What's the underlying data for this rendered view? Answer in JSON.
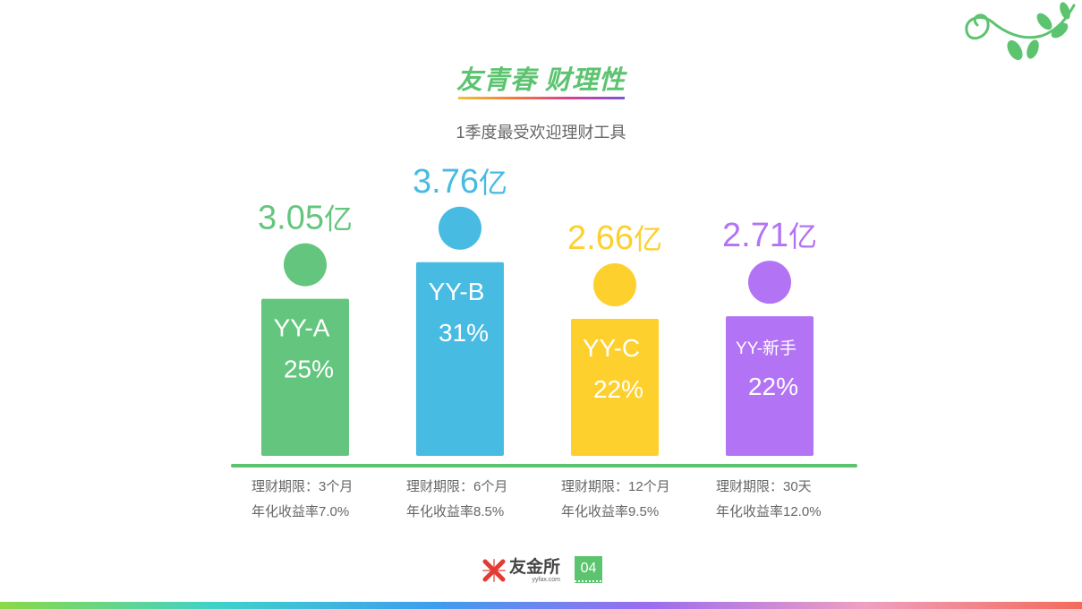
{
  "header": {
    "title": "友青春 财理性",
    "subtitle": "1季度最受欢迎理财工具"
  },
  "chart_data": {
    "type": "bar",
    "unit": "亿",
    "categories": [
      "YY-A",
      "YY-B",
      "YY-C",
      "YY-新手"
    ],
    "values": [
      3.05,
      3.76,
      2.66,
      2.71
    ],
    "share": [
      "25%",
      "31%",
      "22%",
      "22%"
    ],
    "value_labels": [
      "3.05",
      "3.76",
      "2.66",
      "2.71"
    ],
    "terms": [
      "理财期限：3个月",
      "理财期限：6个月",
      "理财期限：12个月",
      "理财期限：30天"
    ],
    "yields": [
      "年化收益率7.0%",
      "年化收益率8.5%",
      "年化收益率9.5%",
      "年化收益率12.0%"
    ],
    "colors": [
      "#64c67e",
      "#47bbe2",
      "#fdd02d",
      "#b373f5"
    ],
    "baseline_color": "#5cc36f"
  },
  "footer": {
    "logo_text": "友金所",
    "logo_domain": "yyfax.com",
    "page_number": "04"
  },
  "colors": {
    "accent": "#5cc36f",
    "title": "#5cc36f"
  }
}
